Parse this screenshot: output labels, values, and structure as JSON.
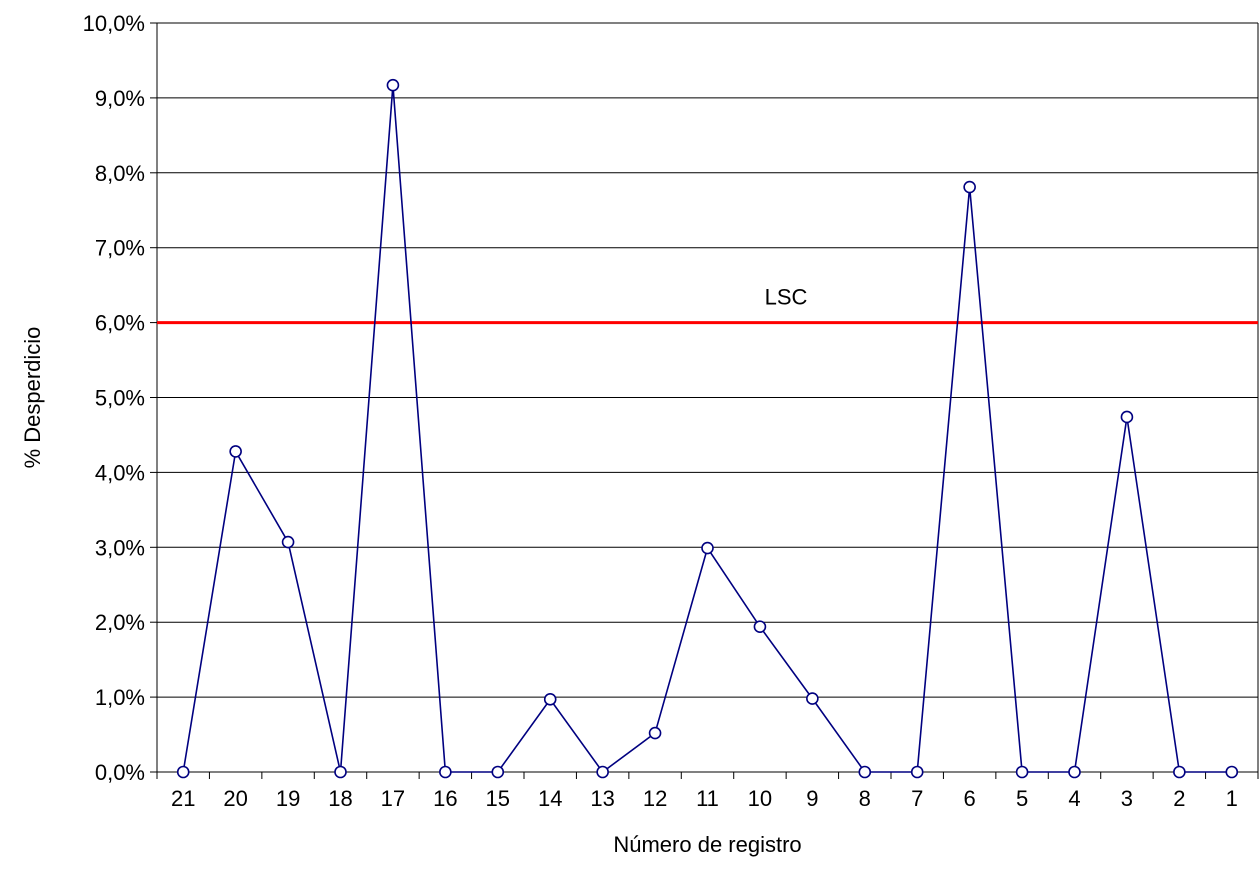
{
  "chart_data": {
    "type": "line",
    "title": "",
    "xlabel": "Número de registro",
    "ylabel": "% Desperdicio",
    "categories": [
      "21",
      "20",
      "19",
      "18",
      "17",
      "16",
      "15",
      "14",
      "13",
      "12",
      "11",
      "10",
      "9",
      "8",
      "7",
      "6",
      "5",
      "4",
      "3",
      "2",
      "1"
    ],
    "series": [
      {
        "values": [
          0.0,
          4.28,
          3.07,
          0.0,
          9.17,
          0.0,
          0.0,
          0.97,
          0.0,
          0.52,
          2.99,
          1.94,
          0.98,
          0.0,
          0.0,
          7.81,
          0.0,
          0.0,
          4.74,
          0.0,
          0.0
        ],
        "color": "#000080",
        "marker": "circle"
      }
    ],
    "ylim": [
      0,
      10
    ],
    "yticks": [
      "0,0%",
      "1,0%",
      "2,0%",
      "3,0%",
      "4,0%",
      "5,0%",
      "6,0%",
      "7,0%",
      "8,0%",
      "9,0%",
      "10,0%"
    ],
    "grid": true,
    "control_limit": {
      "label": "LSC",
      "value": 6.0,
      "color": "#ff0000"
    }
  }
}
